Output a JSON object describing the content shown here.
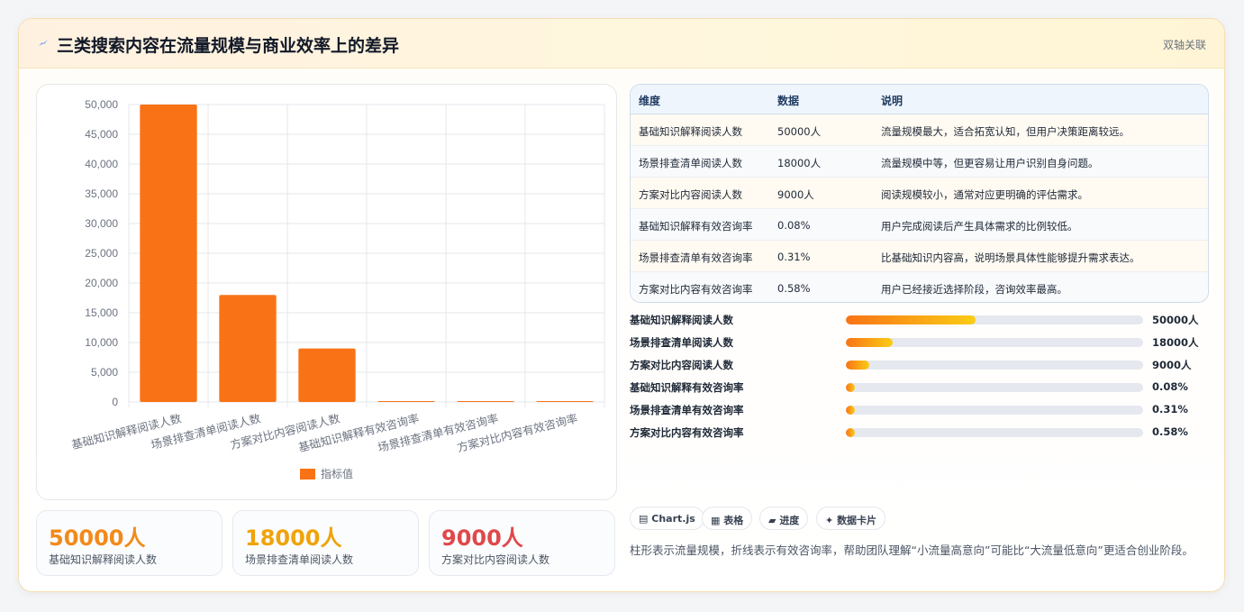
{
  "header": {
    "title": "三类搜索内容在流量规模与商业效率上的差异",
    "tag": "双轴关联"
  },
  "colors": {
    "bar": "#f97316",
    "accent_orange": "#f28a1a",
    "accent_amber": "#f0a30a",
    "accent_red": "#e0484a"
  },
  "chart_data": {
    "type": "bar",
    "categories": [
      "基础知识解释阅读人数",
      "场景排查清单阅读人数",
      "方案对比内容阅读人数",
      "基础知识解释有效咨询率",
      "场景排查清单有效咨询率",
      "方案对比内容有效咨询率"
    ],
    "series": [
      {
        "name": "指标值",
        "values": [
          50000,
          18000,
          9000,
          0.08,
          0.31,
          0.58
        ]
      }
    ],
    "ylim": [
      0,
      50000
    ],
    "yticks": [
      "50,000",
      "45,000",
      "40,000",
      "35,000",
      "30,000",
      "25,000",
      "20,000",
      "15,000",
      "10,000",
      "5,000",
      "0"
    ],
    "grid": true,
    "legend": "bottom"
  },
  "stats": [
    {
      "value": "50000人",
      "label": "基础知识解释阅读人数"
    },
    {
      "value": "18000人",
      "label": "场景排查清单阅读人数"
    },
    {
      "value": "9000人",
      "label": "方案对比内容阅读人数"
    }
  ],
  "table": {
    "headers": [
      "维度",
      "数据",
      "说明"
    ],
    "rows": [
      [
        "基础知识解释阅读人数",
        "50000人",
        "流量规模最大，适合拓宽认知，但用户决策距离较远。"
      ],
      [
        "场景排查清单阅读人数",
        "18000人",
        "流量规模中等，但更容易让用户识别自身问题。"
      ],
      [
        "方案对比内容阅读人数",
        "9000人",
        "阅读规模较小，通常对应更明确的评估需求。"
      ],
      [
        "基础知识解释有效咨询率",
        "0.08%",
        "用户完成阅读后产生具体需求的比例较低。"
      ],
      [
        "场景排查清单有效咨询率",
        "0.31%",
        "比基础知识内容高，说明场景具体性能够提升需求表达。"
      ],
      [
        "方案对比内容有效咨询率",
        "0.58%",
        "用户已经接近选择阶段，咨询效率最高。"
      ]
    ]
  },
  "progress": [
    {
      "label": "基础知识解释阅读人数",
      "value": "50000人",
      "fraction": 0.435
    },
    {
      "label": "场景排查清单阅读人数",
      "value": "18000人",
      "fraction": 0.157
    },
    {
      "label": "方案对比内容阅读人数",
      "value": "9000人",
      "fraction": 0.078
    },
    {
      "label": "基础知识解释有效咨询率",
      "value": "0.08%",
      "fraction": 0.03
    },
    {
      "label": "场景排查清单有效咨询率",
      "value": "0.31%",
      "fraction": 0.03
    },
    {
      "label": "方案对比内容有效咨询率",
      "value": "0.58%",
      "fraction": 0.03
    }
  ],
  "chips": [
    {
      "icon": "▤",
      "label": "Chart.js"
    },
    {
      "icon": "▦",
      "label": "表格"
    },
    {
      "icon": "▰",
      "label": "进度"
    },
    {
      "icon": "✦",
      "label": "数据卡片"
    }
  ],
  "note": "柱形表示流量规模，折线表示有效咨询率，帮助团队理解“小流量高意向”可能比“大流量低意向”更适合创业阶段。"
}
